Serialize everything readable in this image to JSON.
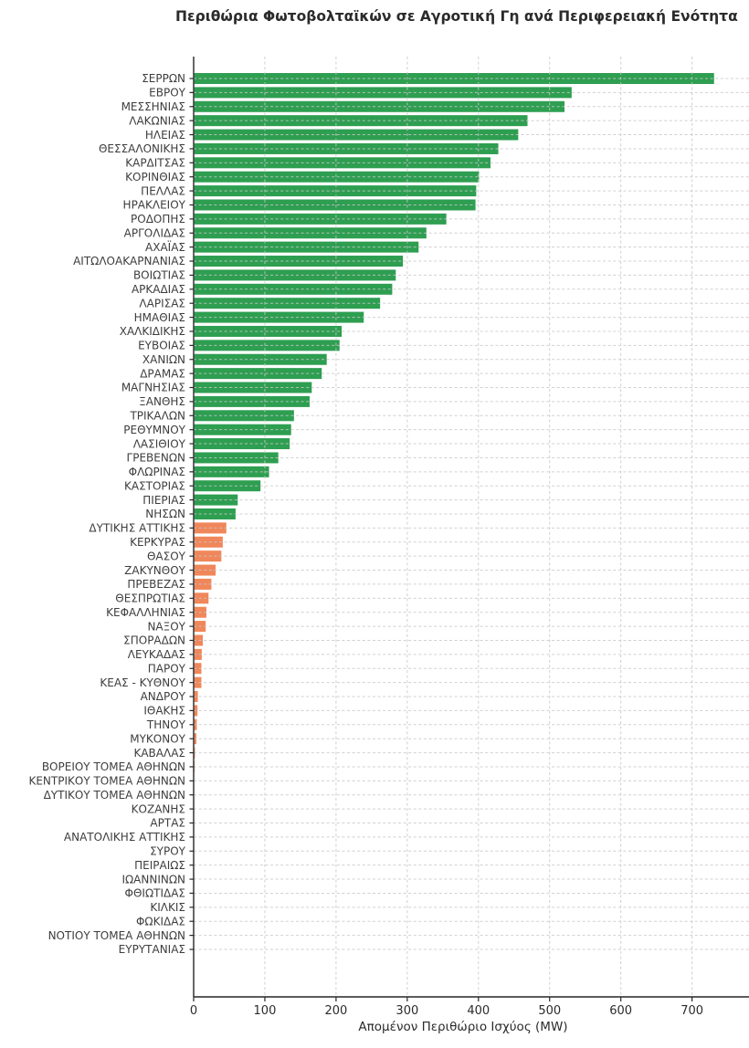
{
  "chart_data": {
    "type": "bar",
    "orientation": "horizontal",
    "title": "Περιθώρια Φωτοβολταϊκών σε Αγροτική Γη ανά Περιφερειακή Ενότητα",
    "xlabel": "Απομένον Περιθώριο Ισχύος (MW)",
    "xlim": [
      0,
      780
    ],
    "xticks": [
      0,
      100,
      200,
      300,
      400,
      500,
      600,
      700
    ],
    "grid": "dashed light-gray gridlines on both axes, drawn over bars",
    "legend": "none",
    "colors": {
      "high": "#2e9e51",
      "low": "#f0875a"
    },
    "color_rule": "green if value above threshold, orange otherwise",
    "threshold_mw": 50,
    "categories": [
      "ΣΕΡΡΩΝ",
      "ΕΒΡΟΥ",
      "ΜΕΣΣΗΝΙΑΣ",
      "ΛΑΚΩΝΙΑΣ",
      "ΗΛΕΙΑΣ",
      "ΘΕΣΣΑΛΟΝΙΚΗΣ",
      "ΚΑΡΔΙΤΣΑΣ",
      "ΚΟΡΙΝΘΙΑΣ",
      "ΠΕΛΛΑΣ",
      "ΗΡΑΚΛΕΙΟΥ",
      "ΡΟΔΟΠΗΣ",
      "ΑΡΓΟΛΙΔΑΣ",
      "ΑΧΑΪΑΣ",
      "ΑΙΤΩΛΟΑΚΑΡΝΑΝΙΑΣ",
      "ΒΟΙΩΤΙΑΣ",
      "ΑΡΚΑΔΙΑΣ",
      "ΛΑΡΙΣΑΣ",
      "ΗΜΑΘΙΑΣ",
      "ΧΑΛΚΙΔΙΚΗΣ",
      "ΕΥΒΟΙΑΣ",
      "ΧΑΝΙΩΝ",
      "ΔΡΑΜΑΣ",
      "ΜΑΓΝΗΣΙΑΣ",
      "ΞΑΝΘΗΣ",
      "ΤΡΙΚΑΛΩΝ",
      "ΡΕΘΥΜΝΟΥ",
      "ΛΑΣΙΘΙΟΥ",
      "ΓΡΕΒΕΝΩΝ",
      "ΦΛΩΡΙΝΑΣ",
      "ΚΑΣΤΟΡΙΑΣ",
      "ΠΙΕΡΙΑΣ",
      "ΝΗΣΩΝ",
      "ΔΥΤΙΚΗΣ ΑΤΤΙΚΗΣ",
      "ΚΕΡΚΥΡΑΣ",
      "ΘΑΣΟΥ",
      "ΖΑΚΥΝΘΟΥ",
      "ΠΡΕΒΕΖΑΣ",
      "ΘΕΣΠΡΩΤΙΑΣ",
      "ΚΕΦΑΛΛΗΝΙΑΣ",
      "ΝΑΞΟΥ",
      "ΣΠΟΡΑΔΩΝ",
      "ΛΕΥΚΑΔΑΣ",
      "ΠΑΡΟΥ",
      "ΚΕΑΣ - ΚΥΘΝΟΥ",
      "ΑΝΔΡΟΥ",
      "ΙΘΑΚΗΣ",
      "ΤΗΝΟΥ",
      "ΜΥΚΟΝΟΥ",
      "ΚΑΒΑΛΑΣ",
      "ΒΟΡΕΙΟΥ ΤΟΜΕΑ ΑΘΗΝΩΝ",
      "ΚΕΝΤΡΙΚΟΥ ΤΟΜΕΑ ΑΘΗΝΩΝ",
      "ΔΥΤΙΚΟΥ ΤΟΜΕΑ ΑΘΗΝΩΝ",
      "ΚΟΖΑΝΗΣ",
      "ΑΡΤΑΣ",
      "ΑΝΑΤΟΛΙΚΗΣ ΑΤΤΙΚΗΣ",
      "ΣΥΡΟΥ",
      "ΠΕΙΡΑΙΩΣ",
      "ΙΩΑΝΝΙΝΩΝ",
      "ΦΘΙΩΤΙΔΑΣ",
      "ΚΙΛΚΙΣ",
      "ΦΩΚΙΔΑΣ",
      "ΝΟΤΙΟΥ ΤΟΜΕΑ ΑΘΗΝΩΝ",
      "ΕΥΡΥΤΑΝΙΑΣ"
    ],
    "values": [
      730,
      530,
      520,
      468,
      455,
      427,
      416,
      400,
      396,
      395,
      354,
      326,
      315,
      293,
      283,
      278,
      261,
      238,
      207,
      204,
      186,
      179,
      165,
      162,
      140,
      136,
      134,
      118,
      105,
      93,
      61,
      58,
      45,
      40,
      38,
      30,
      24,
      20,
      17,
      16,
      12,
      10.5,
      10,
      10,
      5,
      4.5,
      3.5,
      3,
      1,
      0.5,
      0,
      0,
      0,
      0,
      0,
      0,
      0,
      0,
      0,
      0,
      0,
      0,
      0
    ]
  }
}
